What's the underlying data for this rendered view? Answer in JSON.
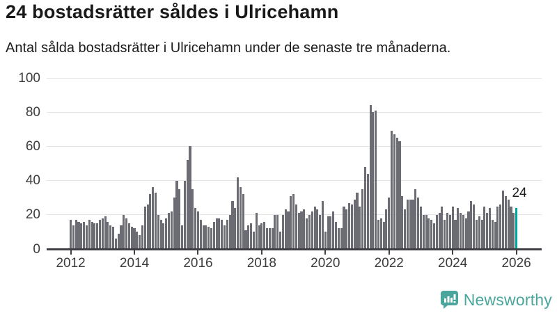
{
  "header": {
    "title": "24 bostadsrätter såldes i Ulricehamn",
    "subtitle": "Antal sålda bostadsrätter i Ulricehamn under de senaste tre månaderna."
  },
  "chart_data": {
    "type": "bar",
    "title": "24 bostadsrätter såldes i Ulricehamn",
    "subtitle": "Antal sålda bostadsrätter i Ulricehamn under de senaste tre månaderna.",
    "frequency": "monthly",
    "x_start": "2012-01",
    "x_end": "2026-01",
    "values": [
      17,
      14,
      17,
      16,
      15,
      16,
      14,
      17,
      16,
      15,
      15,
      17,
      18,
      19,
      16,
      14,
      13,
      6,
      9,
      14,
      20,
      18,
      15,
      13,
      12,
      10,
      8,
      14,
      25,
      26,
      32,
      36,
      33,
      20,
      17,
      15,
      18,
      21,
      22,
      30,
      40,
      35,
      14,
      40,
      52,
      60,
      35,
      24,
      22,
      17,
      14,
      14,
      13,
      12,
      16,
      18,
      18,
      17,
      14,
      17,
      20,
      28,
      24,
      42,
      36,
      32,
      11,
      14,
      15,
      10,
      21,
      14,
      15,
      16,
      12,
      12,
      12,
      20,
      20,
      10,
      20,
      23,
      22,
      31,
      32,
      26,
      21,
      22,
      23,
      18,
      20,
      22,
      25,
      23,
      20,
      28,
      10,
      19,
      19,
      22,
      16,
      12,
      12,
      25,
      23,
      27,
      26,
      29,
      33,
      25,
      35,
      48,
      44,
      84,
      80,
      81,
      17,
      18,
      16,
      23,
      30,
      69,
      67,
      65,
      63,
      31,
      23,
      29,
      29,
      29,
      35,
      30,
      25,
      20,
      20,
      18,
      17,
      15,
      20,
      21,
      25,
      17,
      21,
      20,
      25,
      17,
      24,
      21,
      20,
      18,
      22,
      28,
      26,
      17,
      19,
      17,
      25,
      21,
      24,
      17,
      16,
      25,
      26,
      34,
      31,
      29,
      25,
      21,
      24
    ],
    "highlight_last": {
      "value": 24,
      "annotation": "24"
    },
    "yticks": [
      0,
      20,
      40,
      60,
      80,
      100
    ],
    "xticks": [
      "2012",
      "2014",
      "2016",
      "2018",
      "2020",
      "2022",
      "2024",
      "2026"
    ],
    "ylim": [
      0,
      100
    ],
    "grid": "horizontal",
    "legend": "none",
    "colors": {
      "bar": "#6c6c74",
      "highlight": "#00a59e",
      "grid": "#e4e4e6",
      "axis": "#404046",
      "tick_label": "#3c3c3c"
    }
  },
  "branding": {
    "logo_text": "Newsworthy",
    "logo_color": "#4aa69d"
  }
}
